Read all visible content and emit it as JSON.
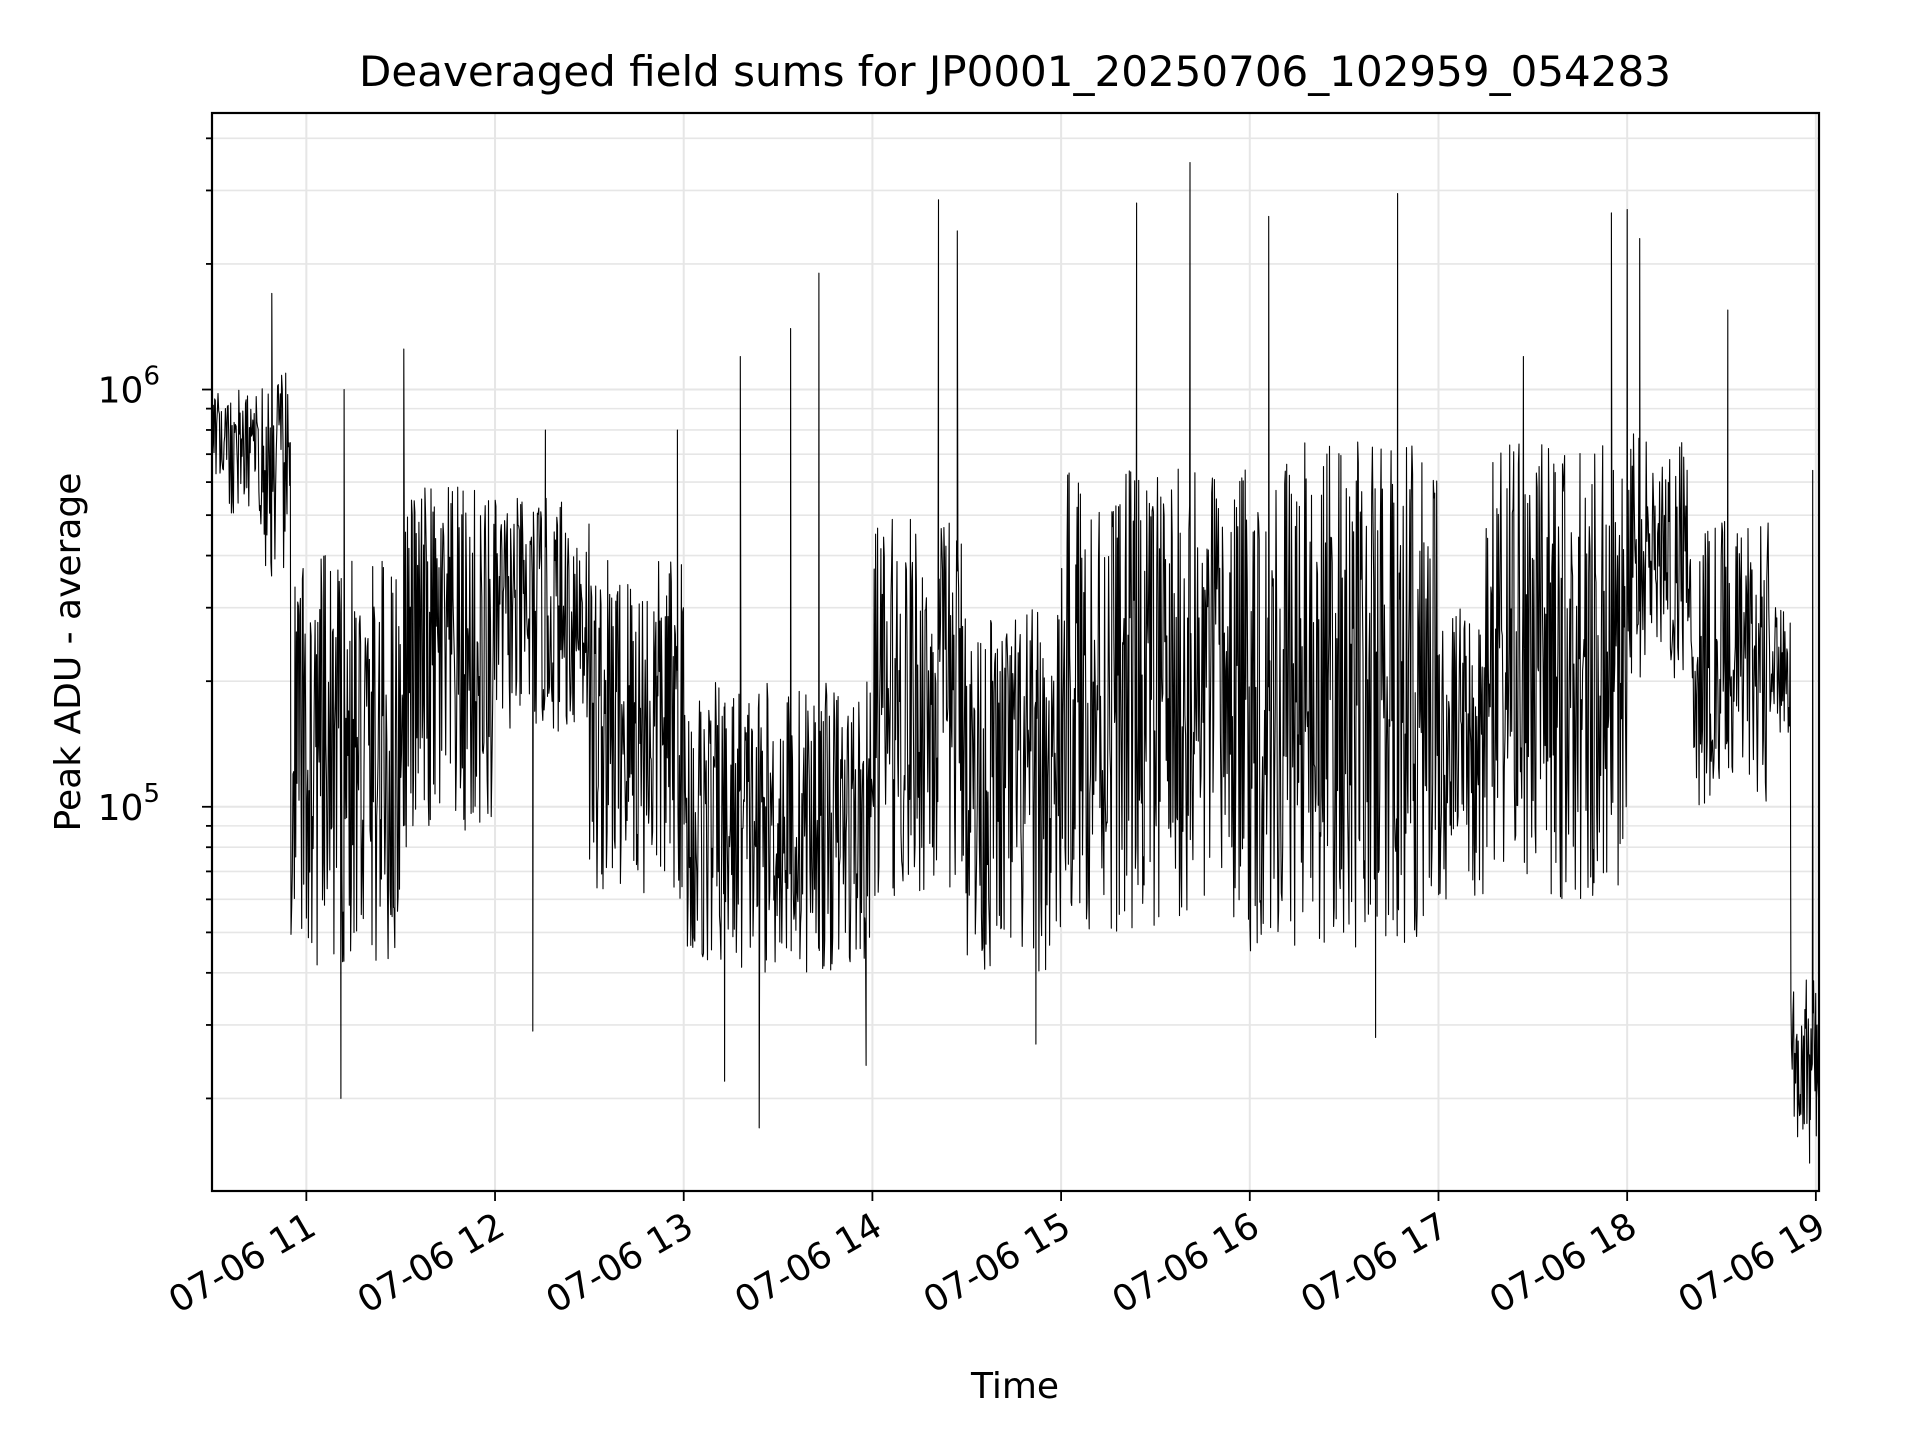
{
  "chart_data": {
    "type": "line",
    "title": "Deaveraged field sums for JP0001_20250706_102959_054283",
    "xlabel": "Time",
    "ylabel": "Peak ADU - average",
    "yscale": "log",
    "grid": true,
    "line_color": "#000000",
    "grid_color": "#e6e6e6",
    "xlim": [
      "07-06 10:30",
      "07-06 19:01"
    ],
    "ylim": [
      12000,
      4600000
    ],
    "x_ticks": [
      "07-06 11",
      "07-06 12",
      "07-06 13",
      "07-06 14",
      "07-06 15",
      "07-06 16",
      "07-06 17",
      "07-06 18",
      "07-06 19"
    ],
    "y_major_ticks": [
      {
        "value": 100000,
        "base": "10",
        "exp": "5"
      },
      {
        "value": 1000000,
        "base": "10",
        "exp": "6"
      }
    ],
    "series": [
      {
        "segments": [
          {
            "start": "07-06 10:30",
            "end": "07-06 10:45",
            "low": 500000,
            "high": 1000000
          },
          {
            "start": "07-06 10:45",
            "end": "07-06 10:55",
            "low": 350000,
            "high": 1100000
          },
          {
            "start": "07-06 10:55",
            "end": "07-06 11:30",
            "low": 40000,
            "high": 400000
          },
          {
            "start": "07-06 11:30",
            "end": "07-06 12:00",
            "low": 80000,
            "high": 600000
          },
          {
            "start": "07-06 12:00",
            "end": "07-06 12:30",
            "low": 150000,
            "high": 550000
          },
          {
            "start": "07-06 12:30",
            "end": "07-06 13:00",
            "low": 60000,
            "high": 400000
          },
          {
            "start": "07-06 13:00",
            "end": "07-06 14:00",
            "low": 40000,
            "high": 200000
          },
          {
            "start": "07-06 14:00",
            "end": "07-06 14:30",
            "low": 60000,
            "high": 500000
          },
          {
            "start": "07-06 14:30",
            "end": "07-06 15:00",
            "low": 40000,
            "high": 300000
          },
          {
            "start": "07-06 15:00",
            "end": "07-06 16:00",
            "low": 50000,
            "high": 650000
          },
          {
            "start": "07-06 16:00",
            "end": "07-06 17:00",
            "low": 45000,
            "high": 750000
          },
          {
            "start": "07-06 17:00",
            "end": "07-06 17:15",
            "low": 60000,
            "high": 300000
          },
          {
            "start": "07-06 17:15",
            "end": "07-06 18:00",
            "low": 60000,
            "high": 750000
          },
          {
            "start": "07-06 18:00",
            "end": "07-06 18:20",
            "low": 200000,
            "high": 800000
          },
          {
            "start": "07-06 18:20",
            "end": "07-06 18:45",
            "low": 100000,
            "high": 500000
          },
          {
            "start": "07-06 18:45",
            "end": "07-06 18:52",
            "low": 150000,
            "high": 300000
          },
          {
            "start": "07-06 18:52",
            "end": "07-06 19:01",
            "low": 16000,
            "high": 40000
          }
        ],
        "peaks": [
          {
            "x": "07-06 10:49",
            "y": 1700000
          },
          {
            "x": "07-06 11:12",
            "y": 1000000
          },
          {
            "x": "07-06 11:31",
            "y": 1250000
          },
          {
            "x": "07-06 12:16",
            "y": 800000
          },
          {
            "x": "07-06 12:58",
            "y": 800000
          },
          {
            "x": "07-06 13:18",
            "y": 1200000
          },
          {
            "x": "07-06 13:34",
            "y": 1400000
          },
          {
            "x": "07-06 13:43",
            "y": 1900000
          },
          {
            "x": "07-06 14:21",
            "y": 2850000
          },
          {
            "x": "07-06 14:27",
            "y": 2400000
          },
          {
            "x": "07-06 15:24",
            "y": 2800000
          },
          {
            "x": "07-06 15:41",
            "y": 3500000
          },
          {
            "x": "07-06 16:06",
            "y": 2600000
          },
          {
            "x": "07-06 16:47",
            "y": 2950000
          },
          {
            "x": "07-06 17:27",
            "y": 1200000
          },
          {
            "x": "07-06 17:55",
            "y": 2650000
          },
          {
            "x": "07-06 18:00",
            "y": 2700000
          },
          {
            "x": "07-06 18:04",
            "y": 2300000
          },
          {
            "x": "07-06 18:32",
            "y": 1550000
          },
          {
            "x": "07-06 18:59",
            "y": 640000
          }
        ],
        "dips": [
          {
            "x": "07-06 11:11",
            "y": 20000
          },
          {
            "x": "07-06 12:12",
            "y": 29000
          },
          {
            "x": "07-06 13:13",
            "y": 22000
          },
          {
            "x": "07-06 13:24",
            "y": 17000
          },
          {
            "x": "07-06 13:58",
            "y": 24000
          },
          {
            "x": "07-06 14:52",
            "y": 27000
          },
          {
            "x": "07-06 16:40",
            "y": 28000
          },
          {
            "x": "07-06 18:58",
            "y": 14000
          },
          {
            "x": "07-06 19:01",
            "y": 17000
          }
        ]
      }
    ]
  }
}
